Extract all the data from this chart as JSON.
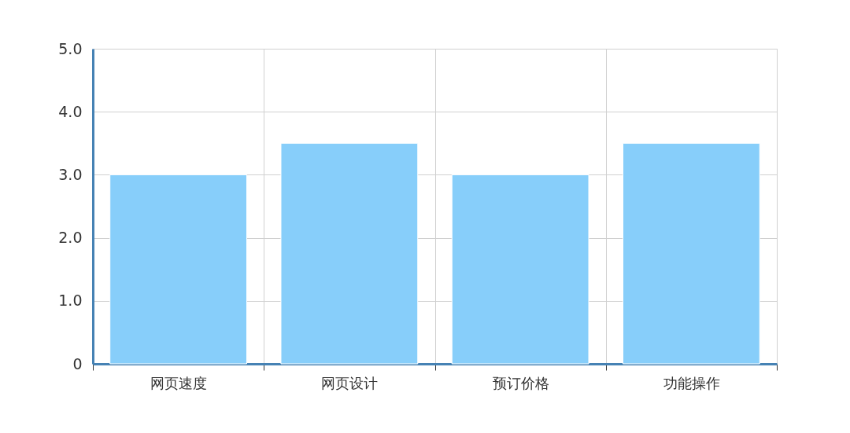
{
  "chart_data": {
    "type": "bar",
    "categories": [
      "网页速度",
      "网页设计",
      "预订价格",
      "功能操作"
    ],
    "values": [
      3,
      3.5,
      3,
      3.5
    ],
    "color": "#87cefa",
    "ylim": [
      0,
      5
    ],
    "yticks": [
      0,
      {
        "value": 1,
        "label": "1.0"
      },
      {
        "value": 2,
        "label": "2.0"
      },
      {
        "value": 3,
        "label": "3.0"
      },
      {
        "value": 4,
        "label": "4.0"
      },
      {
        "value": 5,
        "label": "5.0"
      }
    ],
    "grid": true
  }
}
